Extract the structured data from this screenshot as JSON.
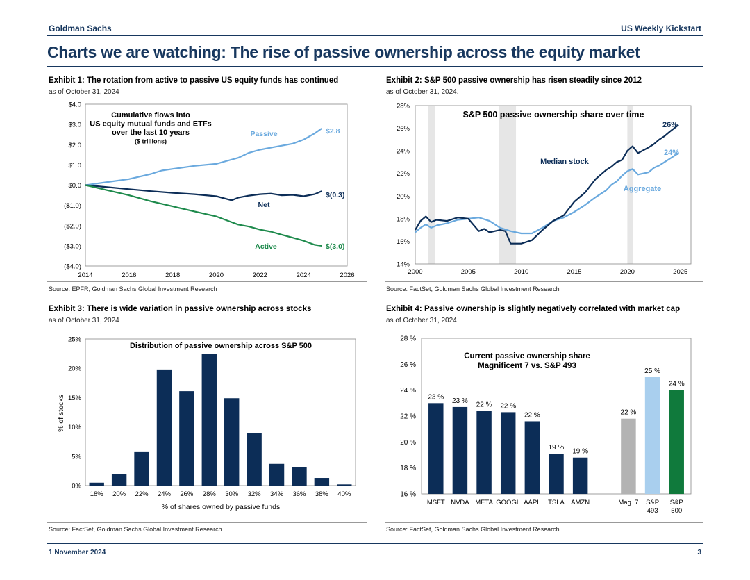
{
  "header": {
    "brand": "Goldman Sachs",
    "publication": "US Weekly Kickstart"
  },
  "page_title": "Charts we are watching: The rise of passive ownership across the equity market",
  "footer": {
    "date": "1 November 2024",
    "page_number": "3"
  },
  "colors": {
    "navy": "#0c2d57",
    "light_blue": "#6aa9de",
    "green": "#1e8a4c",
    "grey": "#b3b3b3",
    "sky": "#a9cfee",
    "dark_green": "#107a3c",
    "band": "#e6e6e6"
  },
  "exhibits": [
    {
      "title": "Exhibit 1: The rotation from active to passive US equity funds has continued",
      "subtitle": "as of October 31, 2024",
      "source": "Source: EPFR, Goldman Sachs Global Investment Research"
    },
    {
      "title": "Exhibit 2: S&P 500 passive ownership has risen steadily since 2012",
      "subtitle": "as of October 31, 2024.",
      "source": "Source: FactSet, Goldman Sachs Global Investment Research"
    },
    {
      "title": "Exhibit 3: There is wide variation in passive ownership across stocks",
      "subtitle": "as of October 31, 2024",
      "source": "Source: FactSet, Goldman Sachs Global Investment Research"
    },
    {
      "title": "Exhibit 4: Passive ownership is slightly negatively correlated with market cap",
      "subtitle": "as of October 31, 2024",
      "source": "Source: FactSet, Goldman Sachs Global Investment Research"
    }
  ],
  "chart_data": [
    {
      "type": "line",
      "title_lines": [
        "Cumulative flows into",
        "US equity mutual funds and ETFs",
        "over the last 10 years"
      ],
      "title_unit": "($ trillions)",
      "xlim": [
        2014,
        2026
      ],
      "ylim": [
        -4,
        4
      ],
      "x_ticks": [
        2014,
        2016,
        2018,
        2020,
        2022,
        2024,
        2026
      ],
      "x_tick_labels": [
        "2014",
        "2016",
        "2018",
        "2020",
        "2022",
        "2024",
        "2026"
      ],
      "y_ticks": [
        4,
        3,
        2,
        1,
        0,
        -1,
        -2,
        -3,
        -4
      ],
      "y_tick_labels": [
        "$4.0",
        "$3.0",
        "$2.0",
        "$1.0",
        "$0.0",
        "($1.0)",
        "($2.0)",
        "($3.0)",
        "($4.0)"
      ],
      "series": [
        {
          "name": "Passive",
          "end_label": "$2.8",
          "x": [
            2014,
            2015,
            2016,
            2017,
            2017.5,
            2018,
            2019,
            2020,
            2020.5,
            2021,
            2021.5,
            2022,
            2022.5,
            2023,
            2023.5,
            2024,
            2024.5,
            2024.83
          ],
          "y": [
            0,
            0.15,
            0.3,
            0.55,
            0.72,
            0.8,
            0.95,
            1.05,
            1.2,
            1.35,
            1.6,
            1.75,
            1.85,
            1.95,
            2.05,
            2.25,
            2.55,
            2.8
          ]
        },
        {
          "name": "Net",
          "end_label": "$(0.3)",
          "x": [
            2014,
            2015,
            2016,
            2017,
            2018,
            2019,
            2020,
            2020.7,
            2021,
            2021.5,
            2022,
            2022.5,
            2023,
            2023.5,
            2024,
            2024.5,
            2024.83
          ],
          "y": [
            0,
            -0.1,
            -0.2,
            -0.3,
            -0.38,
            -0.45,
            -0.55,
            -0.75,
            -0.62,
            -0.52,
            -0.45,
            -0.42,
            -0.5,
            -0.48,
            -0.55,
            -0.45,
            -0.3
          ]
        },
        {
          "name": "Active",
          "end_label": "$(3.0)",
          "x": [
            2014,
            2015,
            2016,
            2017,
            2018,
            2019,
            2020,
            2020.5,
            2021,
            2021.5,
            2022,
            2022.5,
            2023,
            2023.5,
            2024,
            2024.5,
            2024.83
          ],
          "y": [
            0,
            -0.25,
            -0.5,
            -0.8,
            -1.05,
            -1.3,
            -1.55,
            -1.75,
            -1.95,
            -2.05,
            -2.2,
            -2.3,
            -2.45,
            -2.6,
            -2.75,
            -2.95,
            -3.0
          ]
        }
      ]
    },
    {
      "type": "line",
      "title": "S&P 500 passive ownership share over time",
      "xlim": [
        2000,
        2026
      ],
      "ylim": [
        14,
        28
      ],
      "x_ticks": [
        2000,
        2005,
        2010,
        2015,
        2020,
        2025
      ],
      "x_tick_labels": [
        "2000",
        "2005",
        "2010",
        "2015",
        "2020",
        "2025"
      ],
      "y_ticks": [
        28,
        26,
        24,
        22,
        20,
        18,
        16,
        14
      ],
      "y_tick_labels": [
        "28%",
        "26%",
        "24%",
        "22%",
        "20%",
        "18%",
        "16%",
        "14%"
      ],
      "recession_bands": [
        [
          2001.2,
          2001.9
        ],
        [
          2007.9,
          2009.5
        ],
        [
          2020.0,
          2020.5
        ]
      ],
      "series": [
        {
          "name": "Median stock",
          "end_label": "26%",
          "x": [
            2000,
            2000.5,
            2001,
            2001.5,
            2002,
            2003,
            2004,
            2005,
            2006,
            2006.5,
            2007,
            2008,
            2008.5,
            2009,
            2010,
            2011,
            2012,
            2013,
            2014,
            2015,
            2016,
            2017,
            2018,
            2018.5,
            2019,
            2019.5,
            2020,
            2020.5,
            2021,
            2022,
            2022.5,
            2023,
            2023.5,
            2024,
            2024.83
          ],
          "y": [
            17.0,
            17.8,
            18.2,
            17.7,
            17.9,
            17.8,
            18.1,
            18.0,
            16.9,
            17.1,
            16.8,
            17.0,
            16.9,
            15.8,
            15.8,
            16.1,
            17.0,
            17.8,
            18.3,
            19.5,
            20.3,
            21.5,
            22.3,
            22.6,
            23.0,
            23.2,
            24.0,
            24.4,
            23.8,
            24.3,
            24.6,
            25.0,
            25.3,
            25.7,
            26.3
          ]
        },
        {
          "name": "Aggregate",
          "end_label": "24%",
          "x": [
            2000,
            2000.5,
            2001,
            2001.5,
            2002,
            2003,
            2004,
            2005,
            2006,
            2007,
            2008,
            2009,
            2010,
            2011,
            2012,
            2013,
            2014,
            2015,
            2016,
            2017,
            2018,
            2018.5,
            2019,
            2019.5,
            2020,
            2020.5,
            2021,
            2022,
            2022.5,
            2023,
            2023.5,
            2024,
            2024.83
          ],
          "y": [
            16.8,
            17.2,
            17.5,
            17.2,
            17.4,
            17.6,
            17.9,
            18.0,
            18.1,
            17.8,
            17.2,
            16.9,
            16.7,
            16.7,
            17.2,
            17.8,
            18.1,
            18.6,
            19.2,
            19.9,
            20.5,
            21.0,
            21.3,
            21.8,
            22.2,
            22.4,
            21.9,
            22.1,
            22.5,
            22.7,
            23.0,
            23.3,
            23.8
          ]
        }
      ]
    },
    {
      "type": "bar",
      "title": "Distribution of passive ownership across S&P 500",
      "xlabel": "% of shares owned by passive funds",
      "ylabel": "% of stocks",
      "categories": [
        "18%",
        "20%",
        "22%",
        "24%",
        "26%",
        "28%",
        "30%",
        "32%",
        "34%",
        "36%",
        "38%",
        "40%"
      ],
      "values": [
        0.5,
        1.9,
        5.7,
        19.8,
        16.1,
        22.4,
        14.9,
        8.9,
        3.7,
        3.1,
        1.3,
        0.2
      ],
      "ylim": [
        0,
        25
      ],
      "y_ticks": [
        0,
        5,
        10,
        15,
        20,
        25
      ],
      "y_tick_labels": [
        "0%",
        "5%",
        "10%",
        "15%",
        "20%",
        "25%"
      ]
    },
    {
      "type": "bar",
      "title_lines": [
        "Current passive ownership share",
        "Magnificent 7 vs. S&P 493"
      ],
      "categories": [
        "MSFT",
        "NVDA",
        "META",
        "GOOGL",
        "AAPL",
        "TSLA",
        "AMZN",
        "Mag. 7",
        "S&P 493",
        "S&P 500"
      ],
      "category_lines": [
        [
          "MSFT"
        ],
        [
          "NVDA"
        ],
        [
          "META"
        ],
        [
          "GOOGL"
        ],
        [
          "AAPL"
        ],
        [
          "TSLA"
        ],
        [
          "AMZN"
        ],
        [
          "Mag. 7"
        ],
        [
          "S&P",
          "493"
        ],
        [
          "S&P",
          "500"
        ]
      ],
      "values": [
        23.0,
        22.7,
        22.4,
        22.3,
        21.6,
        19.1,
        18.8,
        21.8,
        25.0,
        24.0
      ],
      "data_labels": [
        "23 %",
        "23 %",
        "22 %",
        "22 %",
        "22 %",
        "19 %",
        "19 %",
        "22 %",
        "25 %",
        "24 %"
      ],
      "bar_colors": [
        "#0c2d57",
        "#0c2d57",
        "#0c2d57",
        "#0c2d57",
        "#0c2d57",
        "#0c2d57",
        "#0c2d57",
        "#b3b3b3",
        "#a9cfee",
        "#107a3c"
      ],
      "ylim": [
        16,
        28
      ],
      "y_ticks": [
        16,
        18,
        20,
        22,
        24,
        26,
        28
      ],
      "y_tick_labels": [
        "16 %",
        "18 %",
        "20 %",
        "22 %",
        "24 %",
        "26 %",
        "28 %"
      ]
    }
  ]
}
